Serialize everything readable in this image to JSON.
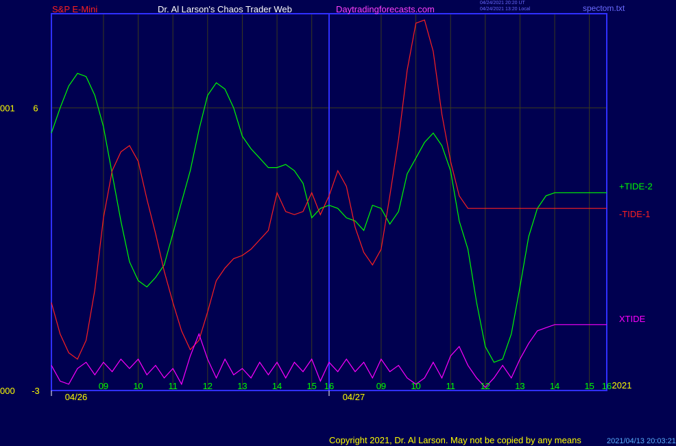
{
  "header": {
    "instrument": "S&P E-Mini",
    "site": "Dr. Al Larson's Chaos Trader Web",
    "url": "Daytradingforecasts.com",
    "timestamp_utc": "04/24/2021 20:20 UT",
    "timestamp_local": "04/24/2021 13:20 Local",
    "file": "spectom.txt"
  },
  "footer": {
    "copyright": "Copyright 2021, Dr. Al Larson. May not be copied by any means",
    "code": "2021/04/13 20:03:21"
  },
  "colors": {
    "background": "#000050",
    "frame": "#3030ff",
    "grid": "#3a3a1e",
    "tide_plus2": "#00ff00",
    "tide_minus1": "#ff2020",
    "xtide": "#ff00ff",
    "date_label": "#ffff00",
    "hour_label": "#00ff00"
  },
  "chart_data": {
    "type": "line",
    "title": "S&P E-Mini",
    "y_axis": {
      "ylim": [
        -3,
        9
      ],
      "ticks": [
        {
          "value": 6,
          "label": "6",
          "side_label": "001"
        },
        {
          "value": -3,
          "label": "-3",
          "side_label": "000"
        }
      ]
    },
    "x_axis": {
      "xlim": [
        0,
        32
      ],
      "hour_ticks": [
        {
          "x": 3,
          "label": "09"
        },
        {
          "x": 5,
          "label": "10"
        },
        {
          "x": 7,
          "label": "11"
        },
        {
          "x": 9,
          "label": "12"
        },
        {
          "x": 11,
          "label": "13"
        },
        {
          "x": 13,
          "label": "14"
        },
        {
          "x": 15,
          "label": "15"
        },
        {
          "x": 16,
          "label": "16"
        },
        {
          "x": 19,
          "label": "09"
        },
        {
          "x": 21,
          "label": "10"
        },
        {
          "x": 23,
          "label": "11"
        },
        {
          "x": 25,
          "label": "12"
        },
        {
          "x": 27,
          "label": "13"
        },
        {
          "x": 29,
          "label": "14"
        },
        {
          "x": 31,
          "label": "15"
        },
        {
          "x": 32,
          "label": "16"
        }
      ],
      "date_labels": [
        {
          "x": 1.5,
          "label": "04/26"
        },
        {
          "x": 17.5,
          "label": "04/27"
        }
      ],
      "day_separators": [
        0,
        16
      ],
      "year_label": "2021"
    },
    "grid": true,
    "legend": "right",
    "series": [
      {
        "name": "+TIDE-2",
        "color": "#00ff00",
        "points": [
          [
            0,
            5.2
          ],
          [
            0.5,
            6.0
          ],
          [
            1,
            6.7
          ],
          [
            1.5,
            7.1
          ],
          [
            2,
            7.0
          ],
          [
            2.5,
            6.4
          ],
          [
            3,
            5.4
          ],
          [
            3.5,
            3.9
          ],
          [
            4,
            2.4
          ],
          [
            4.5,
            1.1
          ],
          [
            5,
            0.5
          ],
          [
            5.5,
            0.3
          ],
          [
            6,
            0.6
          ],
          [
            6.5,
            1.0
          ],
          [
            7,
            2.0
          ],
          [
            7.5,
            3.0
          ],
          [
            8,
            4.0
          ],
          [
            8.5,
            5.3
          ],
          [
            9,
            6.4
          ],
          [
            9.5,
            6.8
          ],
          [
            10,
            6.6
          ],
          [
            10.5,
            6.0
          ],
          [
            11,
            5.1
          ],
          [
            11.5,
            4.7
          ],
          [
            12,
            4.4
          ],
          [
            12.5,
            4.1
          ],
          [
            13,
            4.1
          ],
          [
            13.5,
            4.2
          ],
          [
            14,
            4.0
          ],
          [
            14.5,
            3.6
          ],
          [
            15,
            2.5
          ],
          [
            15.5,
            2.8
          ],
          [
            16,
            2.9
          ],
          [
            16.5,
            2.8
          ],
          [
            17,
            2.5
          ],
          [
            17.5,
            2.4
          ],
          [
            18,
            2.1
          ],
          [
            18.5,
            2.9
          ],
          [
            19,
            2.8
          ],
          [
            19.5,
            2.3
          ],
          [
            20,
            2.7
          ],
          [
            20.5,
            3.9
          ],
          [
            21,
            4.4
          ],
          [
            21.5,
            4.9
          ],
          [
            22,
            5.2
          ],
          [
            22.5,
            4.8
          ],
          [
            23,
            4.0
          ],
          [
            23.5,
            2.4
          ],
          [
            24,
            1.5
          ],
          [
            24.5,
            -0.2
          ],
          [
            25,
            -1.6
          ],
          [
            25.5,
            -2.1
          ],
          [
            26,
            -2.0
          ],
          [
            26.5,
            -1.2
          ],
          [
            27,
            0.3
          ],
          [
            27.5,
            1.9
          ],
          [
            28,
            2.8
          ],
          [
            28.5,
            3.2
          ],
          [
            29,
            3.3
          ],
          [
            29.5,
            3.3
          ],
          [
            30,
            3.3
          ],
          [
            30.5,
            3.3
          ],
          [
            31,
            3.3
          ],
          [
            31.5,
            3.3
          ],
          [
            32,
            3.3
          ]
        ]
      },
      {
        "name": "-TIDE-1",
        "color": "#ff2020",
        "points": [
          [
            0,
            -0.2
          ],
          [
            0.5,
            -1.2
          ],
          [
            1,
            -1.8
          ],
          [
            1.5,
            -2.0
          ],
          [
            2,
            -1.4
          ],
          [
            2.5,
            0.2
          ],
          [
            3,
            2.5
          ],
          [
            3.5,
            4.0
          ],
          [
            4,
            4.6
          ],
          [
            4.5,
            4.8
          ],
          [
            5,
            4.3
          ],
          [
            5.5,
            3.1
          ],
          [
            6,
            2.0
          ],
          [
            6.5,
            0.8
          ],
          [
            7,
            -0.2
          ],
          [
            7.5,
            -1.1
          ],
          [
            8,
            -1.7
          ],
          [
            8.5,
            -1.4
          ],
          [
            9,
            -0.5
          ],
          [
            9.5,
            0.5
          ],
          [
            10,
            0.9
          ],
          [
            10.5,
            1.2
          ],
          [
            11,
            1.3
          ],
          [
            11.5,
            1.5
          ],
          [
            12,
            1.8
          ],
          [
            12.5,
            2.1
          ],
          [
            13,
            3.3
          ],
          [
            13.5,
            2.7
          ],
          [
            14,
            2.6
          ],
          [
            14.5,
            2.7
          ],
          [
            15,
            3.3
          ],
          [
            15.5,
            2.6
          ],
          [
            16,
            3.2
          ],
          [
            16.5,
            4.0
          ],
          [
            17,
            3.5
          ],
          [
            17.5,
            2.2
          ],
          [
            18,
            1.4
          ],
          [
            18.5,
            1.0
          ],
          [
            19,
            1.5
          ],
          [
            19.5,
            3.2
          ],
          [
            20,
            5.0
          ],
          [
            20.5,
            7.2
          ],
          [
            21,
            8.7
          ],
          [
            21.5,
            8.8
          ],
          [
            22,
            7.8
          ],
          [
            22.5,
            5.8
          ],
          [
            23,
            4.3
          ],
          [
            23.5,
            3.2
          ],
          [
            24,
            2.8
          ],
          [
            24.5,
            2.8
          ],
          [
            25,
            2.8
          ],
          [
            25.5,
            2.8
          ],
          [
            26,
            2.8
          ],
          [
            26.5,
            2.8
          ],
          [
            27,
            2.8
          ],
          [
            27.5,
            2.8
          ],
          [
            28,
            2.8
          ],
          [
            28.5,
            2.8
          ],
          [
            29,
            2.8
          ],
          [
            29.5,
            2.8
          ],
          [
            30,
            2.8
          ],
          [
            30.5,
            2.8
          ],
          [
            31,
            2.8
          ],
          [
            31.5,
            2.8
          ],
          [
            32,
            2.8
          ]
        ]
      },
      {
        "name": "XTIDE",
        "color": "#ff00ff",
        "points": [
          [
            0,
            -2.2
          ],
          [
            0.5,
            -2.7
          ],
          [
            1,
            -2.8
          ],
          [
            1.5,
            -2.3
          ],
          [
            2,
            -2.1
          ],
          [
            2.5,
            -2.5
          ],
          [
            3,
            -2.1
          ],
          [
            3.5,
            -2.4
          ],
          [
            4,
            -2.0
          ],
          [
            4.5,
            -2.3
          ],
          [
            5,
            -2.0
          ],
          [
            5.5,
            -2.5
          ],
          [
            6,
            -2.2
          ],
          [
            6.5,
            -2.6
          ],
          [
            7,
            -2.3
          ],
          [
            7.5,
            -2.8
          ],
          [
            8,
            -1.9
          ],
          [
            8.5,
            -1.2
          ],
          [
            9,
            -2.0
          ],
          [
            9.5,
            -2.6
          ],
          [
            10,
            -2.0
          ],
          [
            10.5,
            -2.5
          ],
          [
            11,
            -2.3
          ],
          [
            11.5,
            -2.6
          ],
          [
            12,
            -2.1
          ],
          [
            12.5,
            -2.5
          ],
          [
            13,
            -2.1
          ],
          [
            13.5,
            -2.6
          ],
          [
            14,
            -2.1
          ],
          [
            14.5,
            -2.4
          ],
          [
            15,
            -2.0
          ],
          [
            15.5,
            -2.7
          ],
          [
            16,
            -2.1
          ],
          [
            16.5,
            -2.4
          ],
          [
            17,
            -2.0
          ],
          [
            17.5,
            -2.4
          ],
          [
            18,
            -2.1
          ],
          [
            18.5,
            -2.6
          ],
          [
            19,
            -2.0
          ],
          [
            19.5,
            -2.4
          ],
          [
            20,
            -2.2
          ],
          [
            20.5,
            -2.6
          ],
          [
            21,
            -2.8
          ],
          [
            21.5,
            -2.6
          ],
          [
            22,
            -2.1
          ],
          [
            22.5,
            -2.6
          ],
          [
            23,
            -1.9
          ],
          [
            23.5,
            -1.6
          ],
          [
            24,
            -2.2
          ],
          [
            24.5,
            -2.6
          ],
          [
            25,
            -2.9
          ],
          [
            25.5,
            -2.6
          ],
          [
            26,
            -2.2
          ],
          [
            26.5,
            -2.6
          ],
          [
            27,
            -2.0
          ],
          [
            27.5,
            -1.5
          ],
          [
            28,
            -1.1
          ],
          [
            28.5,
            -1.0
          ],
          [
            29,
            -0.9
          ],
          [
            29.5,
            -0.9
          ],
          [
            30,
            -0.9
          ],
          [
            30.5,
            -0.9
          ],
          [
            31,
            -0.9
          ],
          [
            31.5,
            -0.9
          ],
          [
            32,
            -0.9
          ]
        ]
      }
    ]
  }
}
